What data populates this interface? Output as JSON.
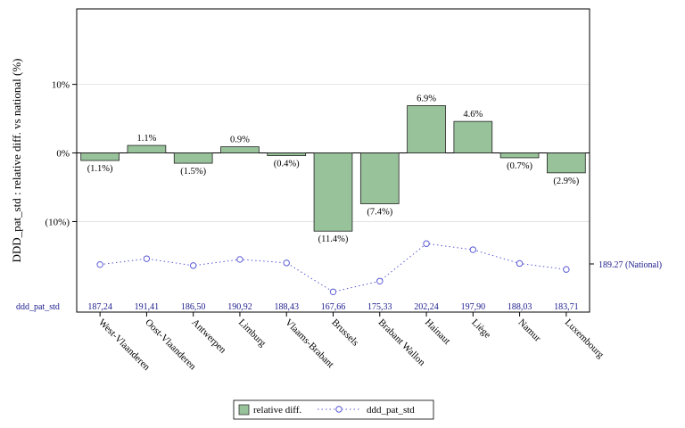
{
  "chart_data": {
    "type": "bar",
    "ylabel": "DDD_pat_std : relative diff. vs national (%)",
    "ylim": [
      -18,
      21
    ],
    "yticks": [
      10,
      0,
      -10
    ],
    "ytick_labels": [
      "10%",
      "0%",
      "(10%)"
    ],
    "categories": [
      "West-Vlaanderen",
      "Oost-Vlaanderen",
      "Antwerpen",
      "Limburg",
      "Vlaams-Brabant",
      "Brussels",
      "Brabant Wallon",
      "Hainaut",
      "Liège",
      "Namur",
      "Luxembourg"
    ],
    "series": [
      {
        "name": "relative diff.",
        "type": "bar",
        "color": "#97c29a",
        "values": [
          -1.1,
          1.1,
          -1.5,
          0.9,
          -0.4,
          -11.4,
          -7.4,
          6.9,
          4.6,
          -0.7,
          -2.9
        ],
        "labels": [
          "(1.1%)",
          "1.1%",
          "(1.5%)",
          "0.9%",
          "(0.4%)",
          "(11.4%)",
          "(7.4%)",
          "6.9%",
          "4.6%",
          "(0.7%)",
          "(2.9%)"
        ]
      },
      {
        "name": "ddd_pat_std",
        "type": "line",
        "color": "#5a5ad6",
        "values": [
          187.24,
          191.41,
          186.5,
          190.92,
          188.43,
          167.66,
          175.33,
          202.24,
          197.9,
          188.03,
          183.71
        ],
        "labels": [
          "187,24",
          "191,41",
          "186,50",
          "190,92",
          "188,43",
          "167,66",
          "175,33",
          "202,24",
          "197,90",
          "188,03",
          "183,71"
        ],
        "range": [
          164,
          212
        ]
      }
    ],
    "national_label": "189.27 (National)",
    "table_row_label": "ddd_pat_std",
    "grid": true,
    "legend": "bottom-center"
  }
}
